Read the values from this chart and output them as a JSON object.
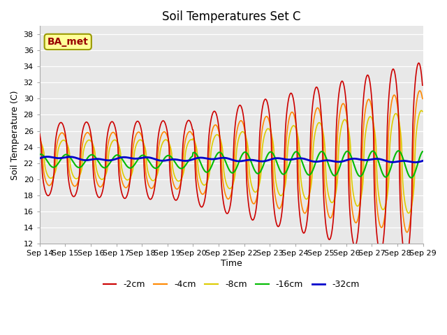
{
  "title": "Soil Temperatures Set C",
  "xlabel": "Time",
  "ylabel": "Soil Temperature (C)",
  "ylim": [
    12,
    39
  ],
  "yticks": [
    12,
    14,
    16,
    18,
    20,
    22,
    24,
    26,
    28,
    30,
    32,
    34,
    36,
    38
  ],
  "background_color": "#e8e8e8",
  "series_colors": {
    "-2cm": "#cc0000",
    "-4cm": "#ff8800",
    "-8cm": "#ddcc00",
    "-16cm": "#00bb00",
    "-32cm": "#0000cc"
  },
  "annotation": {
    "text": "BA_met",
    "fontsize": 10,
    "color": "#990000",
    "bg": "#ffff99",
    "edgecolor": "#999900"
  },
  "x_tick_labels": [
    "Sep 14",
    "Sep 15",
    "Sep 16",
    "Sep 17",
    "Sep 18",
    "Sep 19",
    "Sep 20",
    "Sep 21",
    "Sep 22",
    "Sep 23",
    "Sep 24",
    "Sep 25",
    "Sep 26",
    "Sep 27",
    "Sep 28",
    "Sep 29"
  ]
}
